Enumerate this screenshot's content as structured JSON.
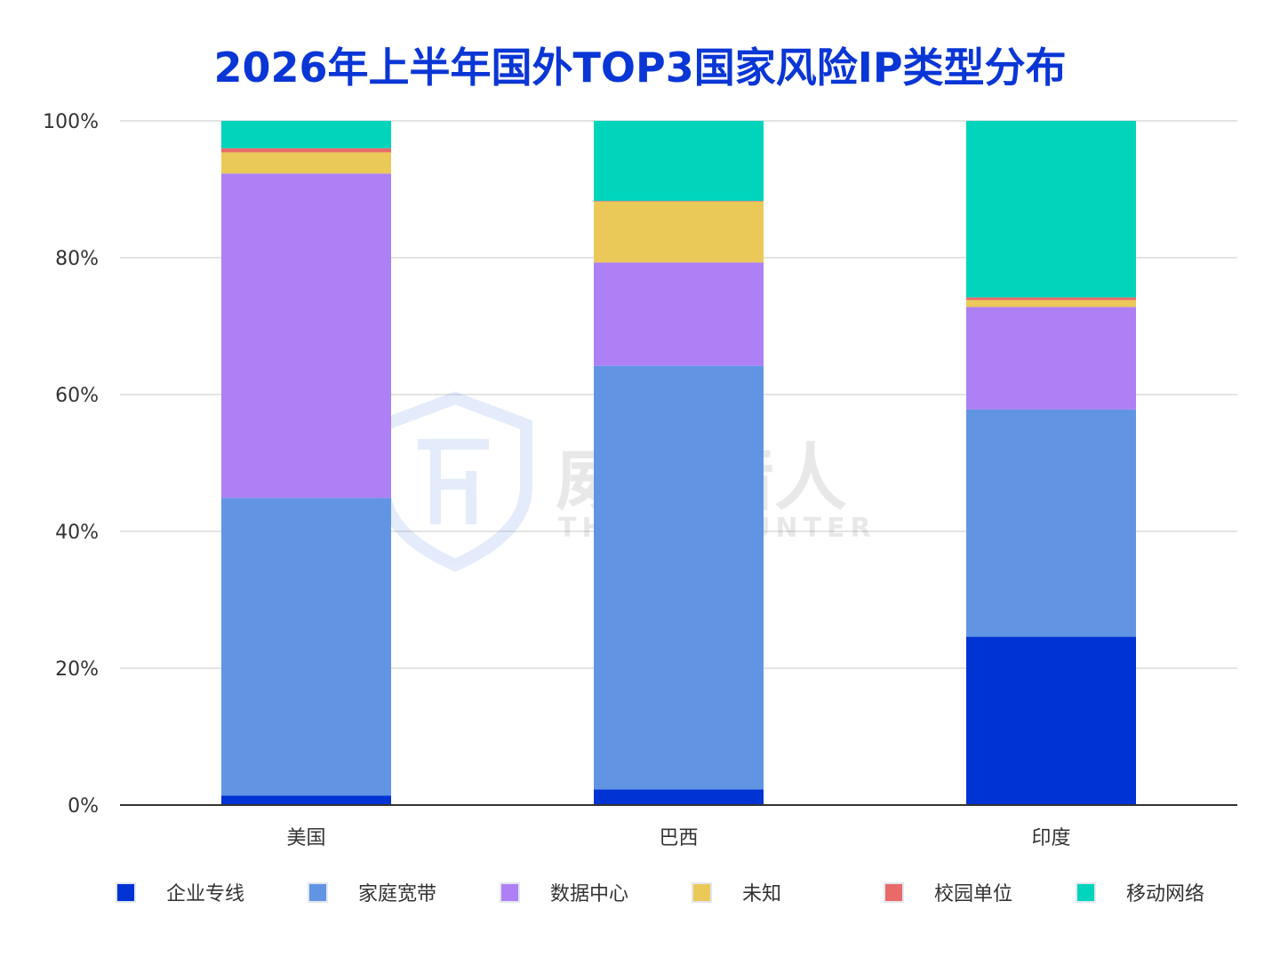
{
  "chart_data": {
    "type": "bar",
    "stacked": true,
    "title": "2026年上半年国外TOP3国家风险IP类型分布",
    "categories": [
      "美国",
      "巴西",
      "印度"
    ],
    "y_ticks": [
      "0%",
      "20%",
      "40%",
      "60%",
      "80%",
      "100%"
    ],
    "ylim": [
      0,
      100
    ],
    "grid": true,
    "legend_position": "bottom",
    "series": [
      {
        "name": "企业专线",
        "color": "#0033d4",
        "values": [
          1.4,
          2.3,
          24.6
        ]
      },
      {
        "name": "家庭宽带",
        "color": "#6195e4",
        "values": [
          43.5,
          61.9,
          33.2
        ]
      },
      {
        "name": "数据中心",
        "color": "#ad80f5",
        "values": [
          47.4,
          15.1,
          15.0
        ]
      },
      {
        "name": "未知",
        "color": "#ebc958",
        "values": [
          3.1,
          8.9,
          1.0
        ]
      },
      {
        "name": "校园单位",
        "color": "#e86a69",
        "values": [
          0.6,
          0.1,
          0.4
        ]
      },
      {
        "name": "移动网络",
        "color": "#00d5bc",
        "values": [
          4.0,
          11.7,
          25.8
        ]
      }
    ]
  },
  "watermark": {
    "name_cn": "威胁猎人",
    "name_en": "THREAT HUNTER"
  }
}
